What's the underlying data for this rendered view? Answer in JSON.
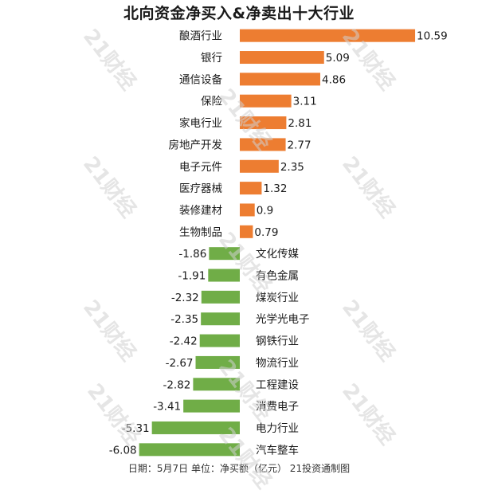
{
  "title": "北向资金净买入&净卖出十大行业",
  "footer": "日期：5月7日 单位：净买额（亿元） 21投资通制图",
  "watermark": "21财经",
  "colors": {
    "positive": "#ed7d31",
    "negative": "#70ad47",
    "text": "#1a1a1a"
  },
  "chart_data": {
    "type": "bar",
    "orientation": "horizontal",
    "title": "北向资金净买入&净卖出十大行业",
    "categories": [
      "酿酒行业",
      "银行",
      "通信设备",
      "保险",
      "家电行业",
      "房地产开发",
      "电子元件",
      "医疗器械",
      "装修建材",
      "生物制品",
      "文化传媒",
      "有色金属",
      "煤炭行业",
      "光学光电子",
      "钢铁行业",
      "物流行业",
      "工程建设",
      "消费电子",
      "电力行业",
      "汽车整车"
    ],
    "values": [
      10.59,
      5.09,
      4.86,
      3.11,
      2.81,
      2.77,
      2.35,
      1.32,
      0.9,
      0.79,
      -1.86,
      -1.91,
      -2.32,
      -2.35,
      -2.42,
      -2.67,
      -2.82,
      -3.41,
      -5.31,
      -6.08
    ],
    "value_labels": [
      "10.59",
      "5.09",
      "4.86",
      "3.11",
      "2.81",
      "2.77",
      "2.35",
      "1.32",
      "0.9",
      "0.79",
      "-1.86",
      "-1.91",
      "-2.32",
      "-2.35",
      "-2.42",
      "-2.67",
      "-2.82",
      "-3.41",
      "-5.31",
      "-6.08"
    ],
    "xlim": [
      -6.08,
      10.59
    ],
    "grid": false,
    "legend": "none"
  }
}
